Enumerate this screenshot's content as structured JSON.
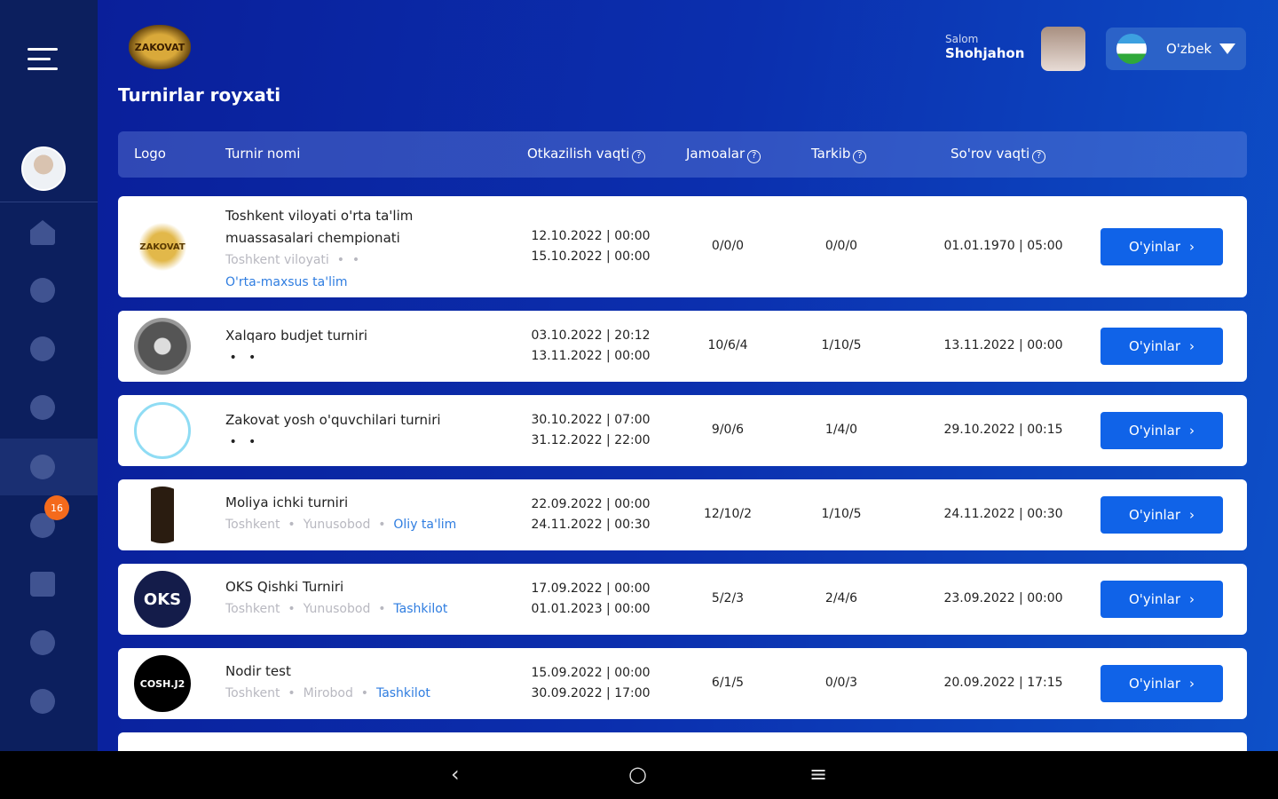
{
  "app": {
    "logo_text": "ZAKOVAT",
    "page_title": "Turnirlar royxati"
  },
  "user": {
    "greeting": "Salom",
    "name": "Shohjahon"
  },
  "language": {
    "selected": "O'zbek"
  },
  "sidebar": {
    "badge_count": "16",
    "items": [
      "home",
      "games",
      "students",
      "teams",
      "tournaments",
      "profile",
      "archive",
      "transfers",
      "notifications"
    ],
    "active": "tournaments"
  },
  "table": {
    "headers": {
      "logo": "Logo",
      "name": "Turnir nomi",
      "time": "Otkazilish vaqti",
      "teams": "Jamoalar",
      "composition": "Tarkib",
      "request": "So'rov vaqti",
      "help": "?"
    },
    "button_label": "O'yinlar",
    "rows": [
      {
        "logo": "ZAKOVAT",
        "name": "Toshkent viloyati o'rta ta'lim muassasalari chempionati",
        "region": "Toshkent viloyati",
        "district": "",
        "category": "O'rta-maxsus ta'lim",
        "start": "12.10.2022 | 00:00",
        "end": "15.10.2022 | 00:00",
        "teams": "0/0/0",
        "composition": "0/0/0",
        "request": "01.01.1970 | 05:00"
      },
      {
        "logo": "",
        "name": "Xalqaro budjet  turniri",
        "region": "",
        "district": "",
        "category": "",
        "start": "03.10.2022 | 20:12",
        "end": "13.11.2022 | 00:00",
        "teams": "10/6/4",
        "composition": "1/10/5",
        "request": "13.11.2022 | 00:00"
      },
      {
        "logo": "",
        "name": "Zakovat yosh o'quvchilari turniri",
        "region": "",
        "district": "",
        "category": "",
        "start": "30.10.2022 | 07:00",
        "end": "31.12.2022 | 22:00",
        "teams": "9/0/6",
        "composition": "1/4/0",
        "request": "29.10.2022 | 00:15"
      },
      {
        "logo": "",
        "name": "Moliya ichki turniri",
        "region": "Toshkent",
        "district": "Yunusobod",
        "category": "Oliy ta'lim",
        "start": "22.09.2022 | 00:00",
        "end": "24.11.2022 | 00:30",
        "teams": "12/10/2",
        "composition": "1/10/5",
        "request": "24.11.2022 | 00:30"
      },
      {
        "logo": "OKS",
        "name": "OKS Qishki Turniri",
        "region": "Toshkent",
        "district": "Yunusobod",
        "category": "Tashkilot",
        "start": "17.09.2022 | 00:00",
        "end": "01.01.2023 | 00:00",
        "teams": "5/2/3",
        "composition": "2/4/6",
        "request": "23.09.2022 | 00:00"
      },
      {
        "logo": "COSH.J2",
        "name": "Nodir test",
        "region": "Toshkent",
        "district": "Mirobod",
        "category": "Tashkilot",
        "start": "15.09.2022 | 00:00",
        "end": "30.09.2022 | 17:00",
        "teams": "6/1/5",
        "composition": "0/0/3",
        "request": "20.09.2022 | 17:15"
      }
    ]
  },
  "colors": {
    "sidebar": "#0c1f5e",
    "accent": "#1063e8",
    "badge": "#f46a1c",
    "link": "#2f7de0"
  }
}
